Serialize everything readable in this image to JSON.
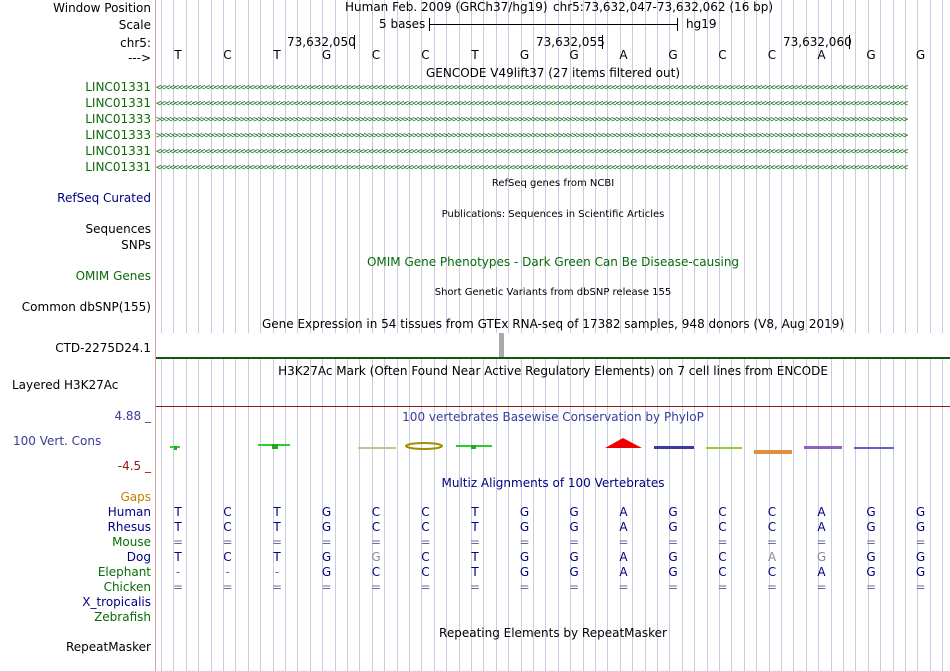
{
  "labels": {
    "window_position": "Window Position",
    "scale": "Scale",
    "chr": "chr5:",
    "arrow": "--->",
    "refseq": "RefSeq Curated",
    "sequences": "Sequences",
    "snps": "SNPs",
    "omim": "OMIM Genes",
    "common_dbsnp": "Common dbSNP(155)",
    "ctd": "CTD-2275D24.1",
    "h3k27": "Layered H3K27Ac",
    "cons_max": "4.88 _",
    "cons_name": "100 Vert. Cons",
    "cons_min": "-4.5 _",
    "gaps": "Gaps"
  },
  "header": {
    "assembly": "Human Feb. 2009 (GRCh37/hg19)",
    "position": "chr5:73,632,047-73,632,062 (16 bp)",
    "scale_text": "5 bases",
    "scale_db": "hg19",
    "coord1": "73,632,050",
    "coord2": "73,632,055",
    "coord3": "73,632,060"
  },
  "sequence": [
    "T",
    "C",
    "T",
    "G",
    "C",
    "C",
    "T",
    "G",
    "G",
    "A",
    "G",
    "C",
    "C",
    "A",
    "G",
    "G"
  ],
  "gencode": {
    "title": "GENCODE V49lift37 (27 items filtered out)",
    "genes": [
      {
        "name": "LINC01331",
        "strand": "-"
      },
      {
        "name": "LINC01331",
        "strand": "-"
      },
      {
        "name": "LINC01333",
        "strand": "+"
      },
      {
        "name": "LINC01333",
        "strand": "+"
      },
      {
        "name": "LINC01331",
        "strand": "-"
      },
      {
        "name": "LINC01331",
        "strand": "-"
      }
    ]
  },
  "titles": {
    "refseq": "RefSeq genes from NCBI",
    "publications": "Publications: Sequences in Scientific Articles",
    "omim": "OMIM Gene Phenotypes - Dark Green Can Be Disease-causing",
    "dbsnp": "Short Genetic Variants from dbSNP release 155",
    "gtex": "Gene Expression in 54 tissues from GTEx RNA-seq of 17382 samples, 948 donors (V8, Aug 2019)",
    "h3k27": "H3K27Ac Mark (Often Found Near Active Regulatory Elements) on 7 cell lines from ENCODE",
    "phylop": "100 vertebrates Basewise Conservation by PhyloP",
    "multiz": "Multiz Alignments of 100 Vertebrates",
    "repeat": "Repeating Elements by RepeatMasker"
  },
  "species": [
    {
      "name": "Human",
      "color": "#000080",
      "bases": [
        "T",
        "C",
        "T",
        "G",
        "C",
        "C",
        "T",
        "G",
        "G",
        "A",
        "G",
        "C",
        "C",
        "A",
        "G",
        "G"
      ]
    },
    {
      "name": "Rhesus",
      "color": "#000080",
      "bases": [
        "T",
        "C",
        "T",
        "G",
        "C",
        "C",
        "T",
        "G",
        "G",
        "A",
        "G",
        "C",
        "C",
        "A",
        "G",
        "G"
      ]
    },
    {
      "name": "Mouse",
      "color": "#0a6a0a",
      "bases": [
        "=",
        "=",
        "=",
        "=",
        "=",
        "=",
        "=",
        "=",
        "=",
        "=",
        "=",
        "=",
        "=",
        "=",
        "=",
        "="
      ]
    },
    {
      "name": "Dog",
      "color": "#000080",
      "bases": [
        "T",
        "C",
        "T",
        "G",
        "G",
        "C",
        "T",
        "G",
        "G",
        "A",
        "G",
        "C",
        "A",
        "G",
        "G",
        "G"
      ]
    },
    {
      "name": "Elephant",
      "color": "#0a6a0a",
      "bases": [
        "-",
        "-",
        "-",
        "G",
        "C",
        "C",
        "T",
        "G",
        "G",
        "A",
        "G",
        "C",
        "C",
        "A",
        "G",
        "G"
      ]
    },
    {
      "name": "Chicken",
      "color": "#0a6a0a",
      "bases": [
        "=",
        "=",
        "=",
        "=",
        "=",
        "=",
        "=",
        "=",
        "=",
        "=",
        "=",
        "=",
        "=",
        "=",
        "=",
        "="
      ]
    },
    {
      "name": "X_tropicalis",
      "color": "#000080",
      "bases": []
    },
    {
      "name": "Zebrafish",
      "color": "#0a6a0a",
      "bases": []
    }
  ],
  "repeatmasker_label": "RepeatMasker",
  "colors": {
    "gene": "#0a6a0a",
    "refseq": "#000080",
    "cons_max": "#3a3a9a",
    "cons_min": "#8b1a1a",
    "gaps": "#cc7a00",
    "grid": "#c8cce0"
  }
}
